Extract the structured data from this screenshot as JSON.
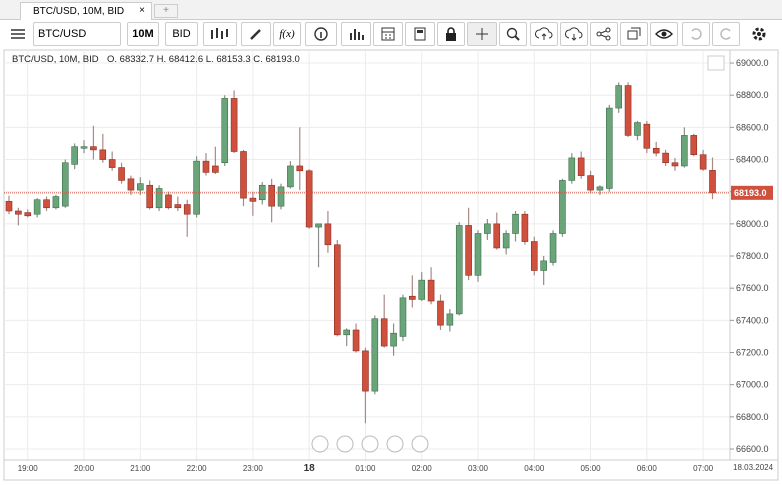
{
  "ui": {
    "tab_title": "BTC/USD, 10M, BID",
    "tab_close": "×",
    "tab_add": "+",
    "symbol": "BTC/USD",
    "interval": "10M",
    "price_side": "BID",
    "function_button": "f(x)"
  },
  "chart_data": {
    "type": "candlestick",
    "title": "BTC/USD, 10M, BID",
    "legend": "O. 68332.7 H. 68412.6 L. 68153.3 C. 68193.0",
    "date_label": "18.03.2024",
    "up_color": "#6aa57a",
    "down_color": "#d0503e",
    "grid": true,
    "categories": [
      null,
      null,
      "19:00",
      null,
      null,
      null,
      null,
      null,
      "20:00",
      null,
      null,
      null,
      null,
      null,
      "21:00",
      null,
      null,
      null,
      null,
      null,
      "22:00",
      null,
      null,
      null,
      null,
      null,
      "23:00",
      null,
      null,
      null,
      null,
      null,
      "18",
      null,
      null,
      null,
      null,
      null,
      "01:00",
      null,
      null,
      null,
      null,
      null,
      "02:00",
      null,
      null,
      null,
      null,
      null,
      "03:00",
      null,
      null,
      null,
      null,
      null,
      "04:00",
      null,
      null,
      null,
      null,
      null,
      "05:00",
      null,
      null,
      null,
      null,
      null,
      "06:00",
      null,
      null,
      null,
      null,
      null,
      "07:00",
      null
    ],
    "open": [
      68140,
      68080,
      68070,
      68060,
      68150,
      68100,
      68110,
      68370,
      68470,
      68480,
      68460,
      68400,
      68350,
      68280,
      68210,
      68240,
      68100,
      68180,
      68120,
      68120,
      68060,
      68390,
      68360,
      68380,
      68780,
      68450,
      68160,
      68150,
      68240,
      68110,
      68230,
      68360,
      68330,
      67980,
      68000,
      67870,
      67310,
      67340,
      67210,
      66960,
      67410,
      67240,
      67300,
      67550,
      67530,
      67650,
      67520,
      67370,
      67440,
      67990,
      67680,
      67940,
      68000,
      67850,
      67940,
      68060,
      67890,
      67710,
      67760,
      67940,
      68270,
      68410,
      68300,
      68210,
      68220,
      68720,
      68860,
      68550,
      68620,
      68470,
      68440,
      68380,
      68360,
      68550,
      68430,
      68332.7
    ],
    "high": [
      68175,
      68100,
      68090,
      68160,
      68170,
      68180,
      68400,
      68500,
      68520,
      68610,
      68560,
      68450,
      68380,
      68300,
      68290,
      68270,
      68240,
      68200,
      68170,
      68150,
      68420,
      68440,
      68480,
      68800,
      68830,
      68460,
      68200,
      68260,
      68280,
      68250,
      68390,
      68600,
      68340,
      67990,
      68080,
      67900,
      67350,
      67380,
      67230,
      67430,
      67560,
      67380,
      67560,
      67680,
      67700,
      67730,
      67560,
      67470,
      68010,
      68100,
      67960,
      68030,
      68070,
      67960,
      68080,
      68080,
      67920,
      67800,
      67960,
      68280,
      68440,
      68450,
      68330,
      68240,
      68740,
      68880,
      68880,
      68640,
      68640,
      68510,
      68460,
      68410,
      68600,
      68560,
      68460,
      68412.6
    ],
    "low": [
      68060,
      67990,
      68040,
      68040,
      68080,
      68090,
      68100,
      68340,
      68440,
      68400,
      68380,
      68330,
      68250,
      68180,
      68180,
      68090,
      68080,
      68090,
      68080,
      67920,
      68040,
      68300,
      68310,
      68360,
      68440,
      68110,
      68050,
      68120,
      68010,
      68090,
      68220,
      68210,
      67970,
      67730,
      67820,
      67300,
      67240,
      67200,
      66760,
      66940,
      67230,
      67180,
      67270,
      67480,
      67520,
      67500,
      67340,
      67330,
      67430,
      67650,
      67640,
      67900,
      67840,
      67810,
      67890,
      67870,
      67680,
      67620,
      67740,
      67920,
      68250,
      68280,
      68190,
      68180,
      68200,
      68690,
      68540,
      68520,
      68440,
      68420,
      68360,
      68330,
      68350,
      68420,
      68330,
      68153.3
    ],
    "close": [
      68080,
      68060,
      68050,
      68150,
      68100,
      68170,
      68380,
      68480,
      68480,
      68460,
      68400,
      68350,
      68270,
      68210,
      68250,
      68100,
      68220,
      68100,
      68100,
      68060,
      68390,
      68320,
      68320,
      68780,
      68450,
      68160,
      68140,
      68240,
      68110,
      68230,
      68360,
      68330,
      67980,
      68000,
      67870,
      67310,
      67340,
      67210,
      66960,
      67410,
      67240,
      67320,
      67540,
      67530,
      67650,
      67520,
      67370,
      67440,
      67990,
      67680,
      67940,
      68000,
      67850,
      67940,
      68060,
      67890,
      67710,
      67770,
      67940,
      68270,
      68410,
      68300,
      68210,
      68230,
      68720,
      68860,
      68550,
      68630,
      68470,
      68440,
      68380,
      68360,
      68550,
      68430,
      68340,
      68193.0
    ],
    "last_price": {
      "value": 68193.0,
      "label": "68193.0"
    },
    "ylim": [
      66544,
      69050
    ],
    "yticks": [
      {
        "value": 66600,
        "label": "66600.0"
      },
      {
        "value": 66800,
        "label": "66800.0"
      },
      {
        "value": 67000,
        "label": "67000.0"
      },
      {
        "value": 67200,
        "label": "67200.0"
      },
      {
        "value": 67400,
        "label": "67400.0"
      },
      {
        "value": 67600,
        "label": "67600.0"
      },
      {
        "value": 67800,
        "label": "67800.0"
      },
      {
        "value": 68000,
        "label": "68000.0"
      },
      {
        "value": 68200,
        "label": "68200.0"
      },
      {
        "value": 68400,
        "label": "68400.0"
      },
      {
        "value": 68600,
        "label": "68600.0"
      },
      {
        "value": 68800,
        "label": "68800.0"
      },
      {
        "value": 69000,
        "label": "69000.0"
      }
    ]
  }
}
